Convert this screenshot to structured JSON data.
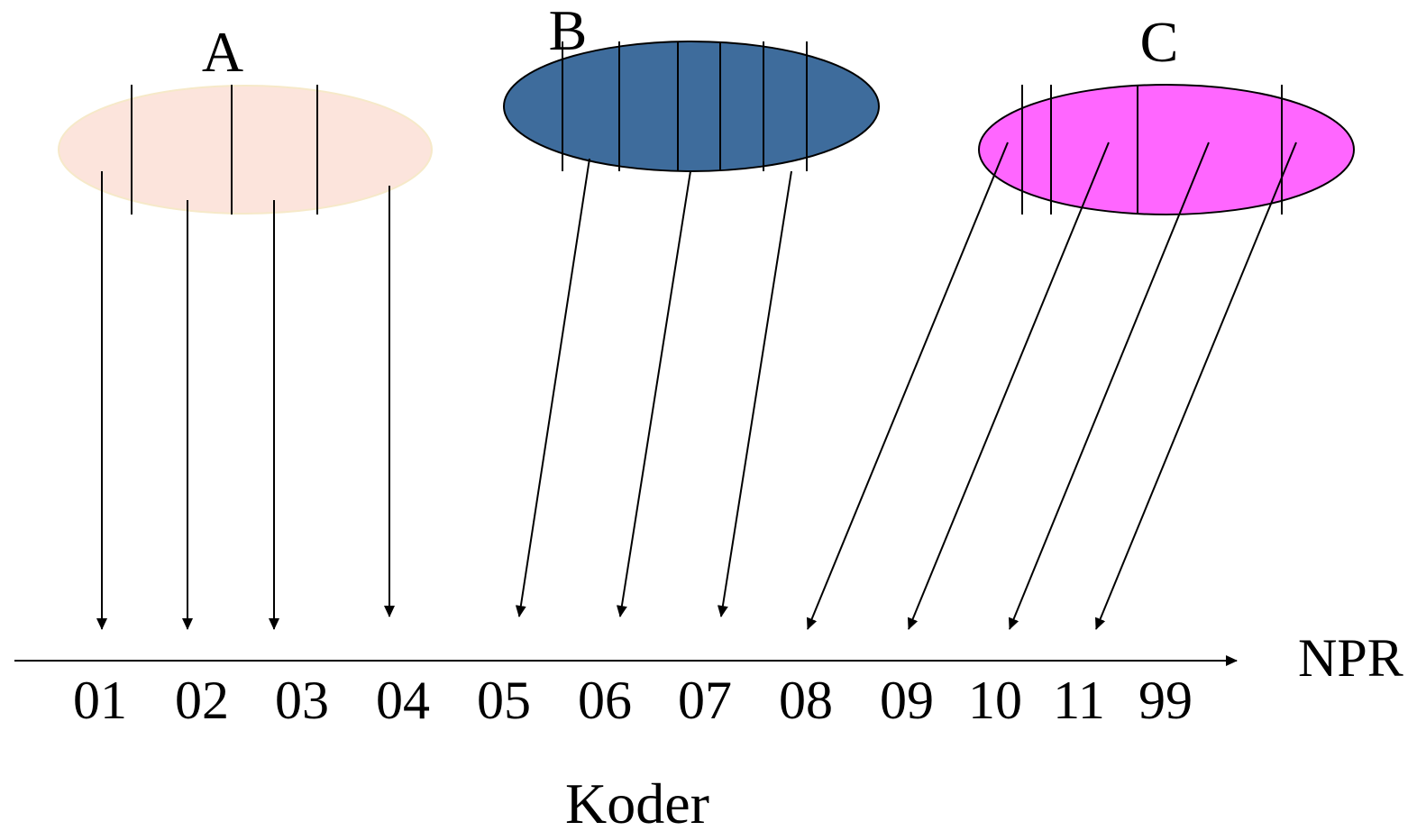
{
  "sets": [
    {
      "label": "A",
      "fill": "#fce4dc",
      "stroke": "#fce4dc"
    },
    {
      "label": "B",
      "fill": "#3e6c9c",
      "stroke": "#000000"
    },
    {
      "label": "C",
      "fill": "#ff66ff",
      "stroke": "#000000"
    }
  ],
  "axis": {
    "name": "NPR",
    "ticks": [
      "01",
      "02",
      "03",
      "04",
      "05",
      "06",
      "07",
      "08",
      "09",
      "10",
      "11",
      "99"
    ]
  },
  "caption": "Koder",
  "colors": {
    "line": "#000000",
    "background": "#ffffff"
  }
}
